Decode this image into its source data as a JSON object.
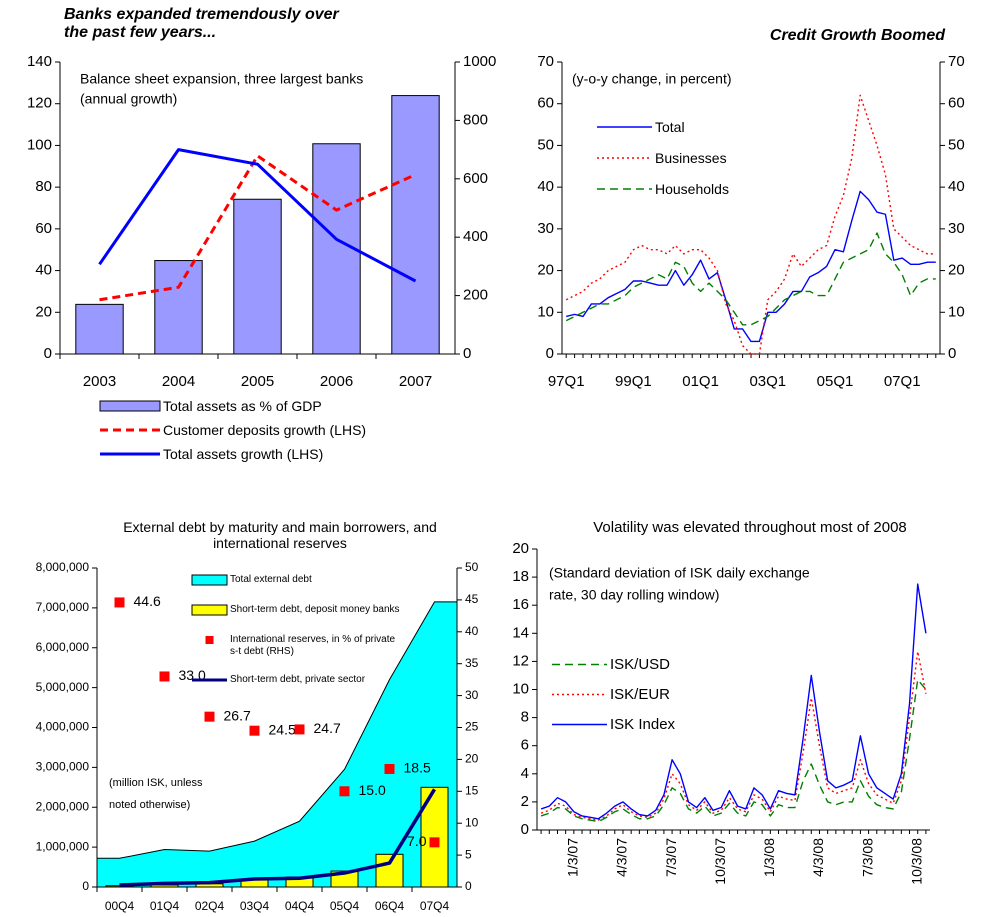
{
  "chart_data": [
    {
      "type": "combo",
      "title": "Banks expanded tremendously over the past few years...",
      "annotations": [
        "Balance sheet expansion, three largest banks",
        "(annual growth)"
      ],
      "categories": [
        "2003",
        "2004",
        "2005",
        "2006",
        "2007"
      ],
      "ylim": [
        0,
        140
      ],
      "yticks": [
        0,
        20,
        40,
        60,
        80,
        100,
        120,
        140
      ],
      "y2lim": [
        0,
        1000
      ],
      "y2ticks": [
        0,
        200,
        400,
        600,
        800,
        1000
      ],
      "legend": "bottom",
      "series": [
        {
          "name": "Total assets as % of GDP",
          "kind": "bar",
          "axis": "y2",
          "color": "#9999ff",
          "values": [
            170,
            320,
            530,
            720,
            885
          ]
        },
        {
          "name": "Customer deposits  growth (LHS)",
          "kind": "line",
          "dash": "dashed",
          "color": "#ff0000",
          "values": [
            26,
            32,
            95,
            69,
            86
          ]
        },
        {
          "name": "Total assets growth (LHS)",
          "kind": "line",
          "color": "#0000ff",
          "values": [
            43,
            98,
            91,
            55,
            35
          ]
        }
      ]
    },
    {
      "type": "combo",
      "title": "Credit Growth Boomed",
      "annotations": [
        "(y-o-y change, in percent)"
      ],
      "categories": [
        "97Q1",
        null,
        null,
        null,
        null,
        null,
        null,
        null,
        "99Q1",
        null,
        null,
        null,
        null,
        null,
        null,
        null,
        "01Q1",
        null,
        null,
        null,
        null,
        null,
        null,
        null,
        "03Q1",
        null,
        null,
        null,
        null,
        null,
        null,
        null,
        "05Q1",
        null,
        null,
        null,
        null,
        null,
        null,
        null,
        "07Q1",
        null,
        null,
        null,
        null
      ],
      "ylim": [
        0,
        70
      ],
      "yticks": [
        0,
        10,
        20,
        30,
        40,
        50,
        60,
        70
      ],
      "y2lim": [
        0,
        70
      ],
      "y2ticks": [
        0,
        10,
        20,
        30,
        40,
        50,
        60,
        70
      ],
      "legend": "upper left",
      "series": [
        {
          "name": "Total",
          "kind": "line",
          "color": "#0000ff",
          "values": [
            9,
            9.5,
            9,
            12,
            12,
            13.5,
            14.5,
            15.5,
            17.5,
            17.5,
            17,
            16.5,
            16.5,
            20,
            16.5,
            19,
            22.5,
            18,
            19.5,
            13,
            6,
            6,
            3,
            3,
            10,
            10,
            12,
            15,
            15,
            18.5,
            19.5,
            21,
            25,
            24.5,
            32,
            39,
            37,
            34,
            33.5,
            22.5,
            23,
            21.5,
            21.5,
            22,
            22
          ]
        },
        {
          "name": "Businesses",
          "kind": "line",
          "dash": "dotted",
          "color": "#ff0000",
          "values": [
            13,
            14,
            15,
            17,
            18,
            20,
            21,
            22,
            25,
            26,
            25,
            25,
            24,
            26,
            24,
            25,
            25,
            23,
            20,
            12,
            8,
            2,
            0,
            0,
            13,
            15,
            18,
            24,
            21,
            23,
            25,
            26,
            33,
            38,
            47,
            62,
            56,
            50,
            43,
            30,
            28,
            26,
            25,
            24,
            24
          ]
        },
        {
          "name": "Households",
          "kind": "line",
          "dash": "dashed",
          "color": "#008000",
          "values": [
            8,
            9,
            10,
            11,
            12,
            12,
            13,
            14,
            16,
            17,
            18,
            19,
            18,
            22,
            21,
            17,
            15,
            17,
            15,
            13,
            10,
            7,
            7,
            8,
            9,
            11,
            13,
            14,
            15,
            15,
            14,
            14,
            18,
            22,
            23,
            24,
            25,
            29,
            24,
            22,
            19,
            14,
            17,
            18,
            18
          ]
        }
      ]
    },
    {
      "type": "combo",
      "title": "External debt by maturity and main borrowers, and international reserves",
      "annotations": [
        "(million ISK, unless",
        "noted otherwise)"
      ],
      "categories": [
        "00Q4",
        "01Q4",
        "02Q4",
        "03Q4",
        "04Q4",
        "05Q4",
        "06Q4",
        "07Q4"
      ],
      "ylim": [
        0,
        8000000
      ],
      "yticks": [
        0,
        {
          "value": 1000000,
          "label": "1,000,000"
        },
        {
          "value": 2000000,
          "label": "2,000,000"
        },
        {
          "value": 3000000,
          "label": "3,000,000"
        },
        {
          "value": 4000000,
          "label": "4,000,000"
        },
        {
          "value": 5000000,
          "label": "5,000,000"
        },
        {
          "value": 6000000,
          "label": "6,000,000"
        },
        {
          "value": 7000000,
          "label": "7,000,000"
        },
        {
          "value": 8000000,
          "label": "8,000,000"
        }
      ],
      "y2lim": [
        0,
        50
      ],
      "y2ticks": [
        0,
        5,
        10,
        15,
        20,
        25,
        30,
        35,
        40,
        45,
        50
      ],
      "legend": "upper center",
      "series": [
        {
          "name": "Total external debt",
          "kind": "area",
          "color": "#00ffff",
          "values": [
            720000,
            940000,
            900000,
            1150000,
            1650000,
            2950000,
            5200000,
            7150000
          ]
        },
        {
          "name": "Short-term debt, deposit money banks",
          "kind": "bar",
          "color": "#ffff00",
          "values": [
            30000,
            50000,
            80000,
            200000,
            250000,
            400000,
            820000,
            2500000
          ]
        },
        {
          "name": "International reserves, in % of private s-t debt (RHS)",
          "kind": "scatter",
          "axis": "y2",
          "color": "#ff0000",
          "values": [
            44.6,
            33,
            26.7,
            24.5,
            24.7,
            15,
            18.5,
            7
          ],
          "value_labels": [
            "44.6",
            "33.0",
            "26.7",
            "24.5",
            "24.7",
            "15.0",
            "18.5",
            "7.0"
          ]
        },
        {
          "name": "Short-term debt, private sector",
          "kind": "line",
          "color": "#000080",
          "values": [
            50000,
            90000,
            110000,
            200000,
            220000,
            350000,
            600000,
            2450000
          ]
        }
      ]
    },
    {
      "type": "combo",
      "title": "Volatility was elevated throughout most of 2008",
      "annotations": [
        "(Standard deviation of ISK daily exchange",
        "rate, 30 day rolling window)"
      ],
      "categories": [
        null,
        null,
        null,
        null,
        "1/3/07",
        null,
        null,
        null,
        null,
        null,
        "4/3/07",
        null,
        null,
        null,
        null,
        null,
        "7/3/07",
        null,
        null,
        null,
        null,
        null,
        "10/3/07",
        null,
        null,
        null,
        null,
        null,
        "1/3/08",
        null,
        null,
        null,
        null,
        null,
        "4/3/08",
        null,
        null,
        null,
        null,
        null,
        "7/3/08",
        null,
        null,
        null,
        null,
        null,
        "10/3/08",
        null
      ],
      "xtick_rotation": -90,
      "ylim": [
        0,
        20
      ],
      "yticks": [
        0,
        2,
        4,
        6,
        8,
        10,
        12,
        14,
        16,
        18,
        20
      ],
      "legend": "center left",
      "series": [
        {
          "name": "ISK/USD",
          "kind": "line",
          "dash": "dashed",
          "color": "#008000",
          "values": [
            1.0,
            1.2,
            1.6,
            1.5,
            1.0,
            0.8,
            0.7,
            0.6,
            0.9,
            1.3,
            1.5,
            1.1,
            0.8,
            0.8,
            1.0,
            1.8,
            3.0,
            2.6,
            1.5,
            1.2,
            1.7,
            1.0,
            1.2,
            1.9,
            1.2,
            1.0,
            2.0,
            1.8,
            1.0,
            1.8,
            1.6,
            1.6,
            3.5,
            4.7,
            3.2,
            2.0,
            1.8,
            2.0,
            2.0,
            3.5,
            2.4,
            1.8,
            1.6,
            1.5,
            2.7,
            6.5,
            10.7,
            10.0
          ]
        },
        {
          "name": "ISK/EUR",
          "kind": "line",
          "dash": "dotted",
          "color": "#ff0000",
          "values": [
            1.2,
            1.4,
            1.9,
            1.7,
            1.1,
            0.9,
            0.8,
            0.7,
            1.0,
            1.5,
            1.8,
            1.3,
            1.0,
            0.9,
            1.2,
            2.2,
            4.0,
            3.3,
            1.8,
            1.4,
            2.0,
            1.2,
            1.4,
            2.3,
            1.5,
            1.3,
            2.5,
            2.2,
            1.3,
            2.4,
            2.2,
            2.1,
            5.5,
            9.4,
            6.0,
            3.0,
            2.6,
            2.8,
            3.0,
            5.0,
            3.3,
            2.5,
            2.2,
            1.9,
            3.5,
            8.0,
            12.7,
            9.7
          ]
        },
        {
          "name": "ISK Index",
          "kind": "line",
          "color": "#0000ff",
          "values": [
            1.5,
            1.7,
            2.3,
            2.0,
            1.3,
            1.0,
            0.9,
            0.8,
            1.2,
            1.7,
            2.0,
            1.5,
            1.1,
            1.0,
            1.4,
            2.5,
            5.0,
            4.0,
            2.0,
            1.6,
            2.3,
            1.4,
            1.6,
            2.8,
            1.7,
            1.5,
            3.0,
            2.5,
            1.5,
            2.8,
            2.6,
            2.5,
            6.5,
            11.0,
            7.0,
            3.5,
            3.0,
            3.2,
            3.5,
            6.7,
            4.0,
            3.0,
            2.6,
            2.2,
            4.0,
            9.0,
            17.5,
            14.0
          ]
        }
      ]
    }
  ]
}
